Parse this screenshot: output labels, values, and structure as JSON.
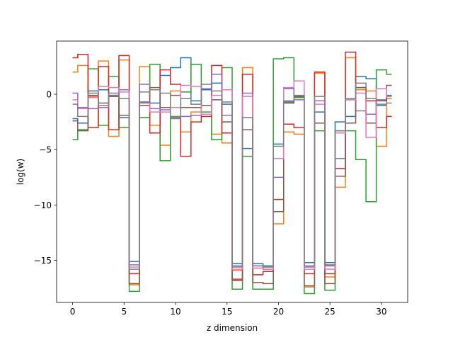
{
  "chart_data": {
    "type": "line",
    "drawstyle": "steps-mid",
    "title": "",
    "xlabel": "z dimension",
    "ylabel": "log(w)",
    "xlim": [
      -1.55,
      32.55
    ],
    "ylim": [
      -18.8,
      4.8
    ],
    "xticks": [
      0,
      5,
      10,
      15,
      20,
      25,
      30
    ],
    "yticks": [
      0,
      -5,
      -10,
      -15
    ],
    "x": [
      0,
      1,
      2,
      3,
      4,
      5,
      6,
      7,
      8,
      9,
      10,
      11,
      12,
      13,
      14,
      15,
      16,
      17,
      18,
      19,
      20,
      21,
      22,
      23,
      24,
      25,
      26,
      27,
      28,
      29,
      30,
      31
    ],
    "series": [
      {
        "color": "#1f77b4",
        "values": [
          -2.2,
          -2.6,
          0.3,
          0.4,
          -0.1,
          -2.1,
          -15.1,
          -0.7,
          -0.8,
          1.7,
          2.4,
          3.3,
          -0.6,
          0.4,
          1.0,
          -0.9,
          -15.3,
          -4.9,
          -15.3,
          -15.5,
          -4.5,
          -0.7,
          -0.2,
          -15.2,
          -1.6,
          -15.2,
          -2.5,
          -2.0,
          1.6,
          1.4,
          -1.0,
          -0.1
        ]
      },
      {
        "color": "#ff7f0e",
        "values": [
          2.0,
          2.6,
          -0.2,
          3.0,
          -3.8,
          3.1,
          -17.2,
          2.5,
          -2.8,
          -4.6,
          0.3,
          -3.4,
          -1.6,
          -1.0,
          -3.6,
          -4.4,
          -15.9,
          2.4,
          -15.7,
          -15.6,
          -11.7,
          -3.4,
          -3.6,
          -17.4,
          1.9,
          -16.5,
          -8.4,
          3.3,
          0.4,
          0.3,
          -4.7,
          -0.4
        ]
      },
      {
        "color": "#2ca02c",
        "values": [
          -4.1,
          -3.2,
          2.3,
          -2.8,
          1.6,
          -3.0,
          -17.8,
          -2.1,
          2.7,
          -6.0,
          -2.1,
          0.2,
          2.7,
          -1.6,
          -4.1,
          2.4,
          -17.6,
          -5.6,
          -17.6,
          -17.6,
          3.2,
          3.3,
          -0.3,
          -18.0,
          -3.3,
          -17.7,
          -3.3,
          -3.3,
          -5.9,
          -9.7,
          2.2,
          1.8
        ]
      },
      {
        "color": "#d62728",
        "values": [
          3.3,
          3.6,
          -3.0,
          2.5,
          -3.2,
          3.5,
          -16.2,
          -0.8,
          -3.5,
          2.2,
          0.9,
          -5.6,
          -2.5,
          -2.0,
          2.6,
          -3.5,
          -16.8,
          1.8,
          -16.3,
          -16.0,
          -9.5,
          -2.7,
          -3.0,
          -16.2,
          2.0,
          -16.2,
          -6.7,
          3.8,
          0.6,
          -0.6,
          -3.0,
          -2.0
        ]
      },
      {
        "color": "#9467bd",
        "values": [
          0.1,
          -1.2,
          -1.3,
          -1.2,
          -0.1,
          0.4,
          -15.4,
          0.9,
          -1.3,
          -1.4,
          -2.2,
          -2.0,
          -1.9,
          0.5,
          1.8,
          -1.9,
          -15.5,
          0.1,
          -15.5,
          -15.8,
          -7.5,
          0.5,
          -0.5,
          -15.6,
          -0.6,
          -15.5,
          -5.8,
          -0.5,
          -1.5,
          -1.8,
          -0.5,
          -0.2
        ]
      },
      {
        "color": "#8c564b",
        "values": [
          -2.4,
          -3.3,
          -0.1,
          -0.8,
          -0.2,
          -1.9,
          -17.1,
          -1.0,
          0.6,
          -1.2,
          -0.1,
          -1.2,
          -1.2,
          -1.0,
          -0.5,
          -2.5,
          -16.7,
          -3.2,
          -17.0,
          -17.1,
          -10.6,
          -0.8,
          -0.2,
          -17.3,
          -2.6,
          -17.1,
          -7.4,
          -2.6,
          0.6,
          -2.6,
          -0.6,
          0.8
        ]
      },
      {
        "color": "#e377c2",
        "values": [
          -0.5,
          -1.3,
          -0.3,
          0.7,
          0.6,
          0.2,
          -15.6,
          -0.8,
          -1.6,
          -1.6,
          -1.2,
          0.8,
          0.7,
          -1.8,
          -0.1,
          0.4,
          -15.8,
          -0.2,
          -15.7,
          -15.8,
          -5.8,
          0.6,
          1.2,
          -15.8,
          -0.9,
          -15.8,
          -3.5,
          -0.5,
          0.1,
          -3.9,
          0.5,
          -0.2
        ]
      },
      {
        "color": "#7f7f7f",
        "values": [
          -0.9,
          -2.0,
          0.1,
          -1.0,
          0.1,
          -0.4,
          -15.8,
          0.2,
          0.4,
          0.1,
          -2.0,
          -0.4,
          -0.9,
          0.9,
          0.3,
          -0.7,
          -15.6,
          -2.1,
          -15.5,
          -15.6,
          -4.7,
          -0.6,
          -0.1,
          -15.5,
          -0.2,
          -15.4,
          -3.3,
          -0.4,
          1.0,
          -0.4,
          -0.9,
          -0.8
        ]
      }
    ]
  }
}
